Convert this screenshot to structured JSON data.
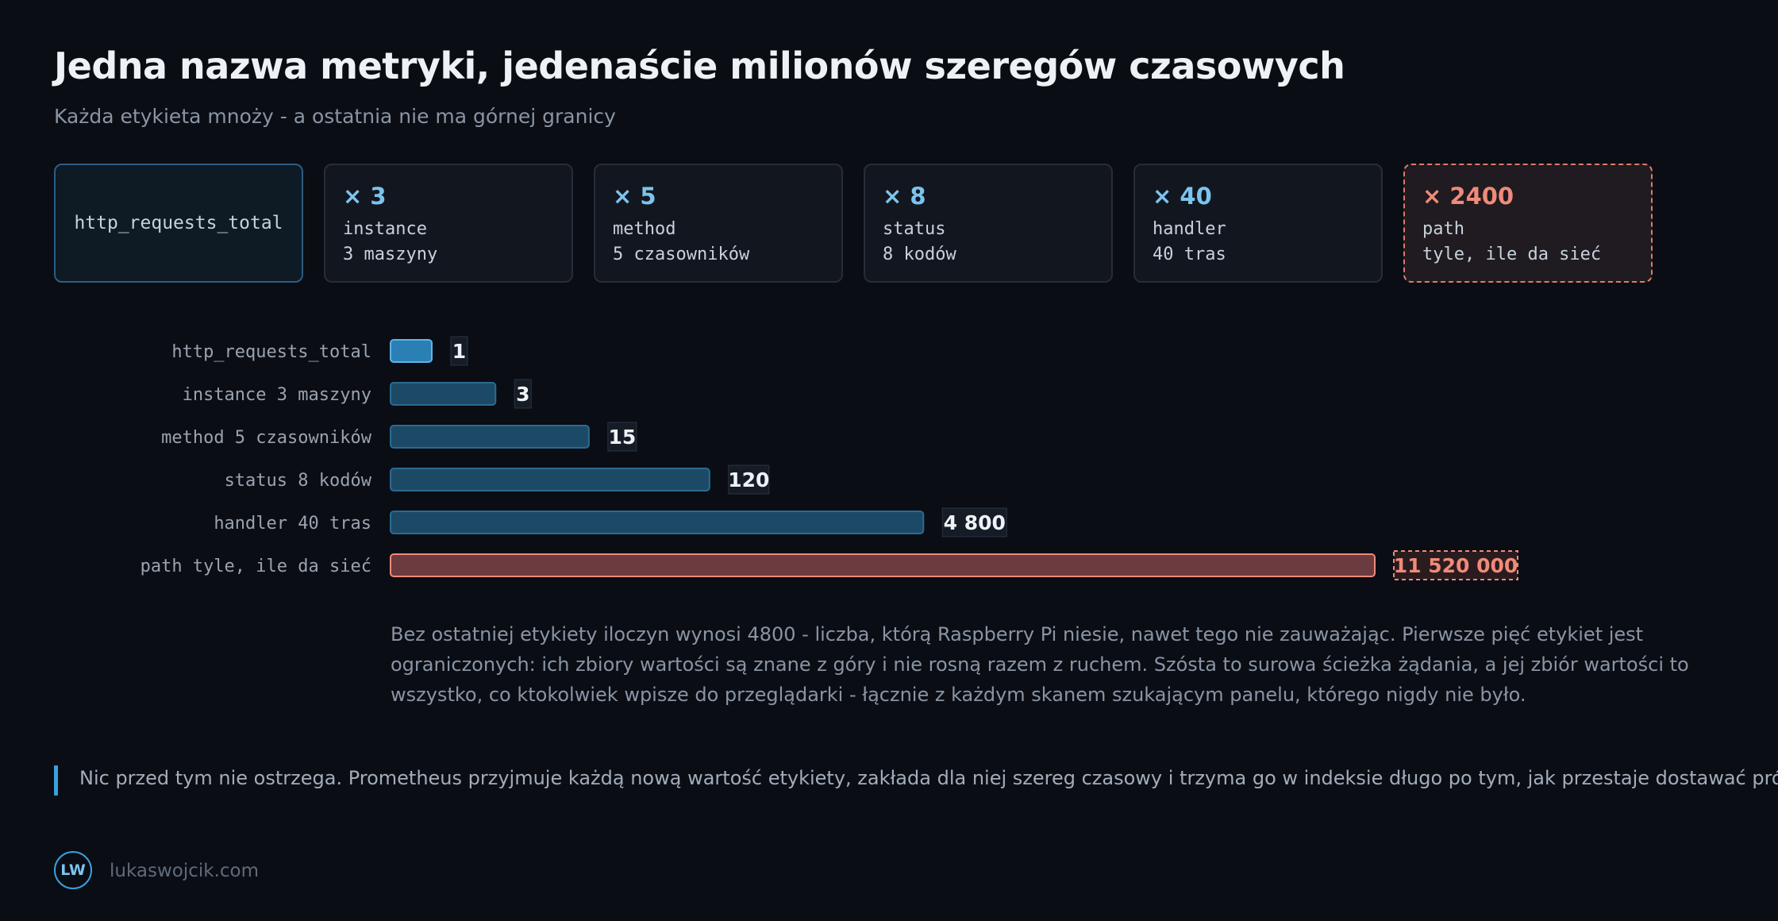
{
  "title": "Jedna nazwa metryki, jedenaście milionów szeregów czasowych",
  "subtitle": "Każda etykieta mnoży - a ostatnia nie ma górnej granicy",
  "cards": {
    "base": "http_requests_total",
    "labels": [
      {
        "mult": "× 3",
        "name": "instance",
        "desc": "3 maszyny"
      },
      {
        "mult": "× 5",
        "name": "method",
        "desc": "5 czasowników"
      },
      {
        "mult": "× 8",
        "name": "status",
        "desc": "8 kodów"
      },
      {
        "mult": "× 40",
        "name": "handler",
        "desc": "40 tras"
      },
      {
        "mult": "× 2400",
        "name": "path",
        "desc": "tyle, ile da sieć"
      }
    ]
  },
  "chart_data": {
    "type": "bar",
    "orientation": "horizontal",
    "scale": "log",
    "categories": [
      "http_requests_total",
      "instance 3 maszyny",
      "method 5 czasowników",
      "status 8 kodów",
      "handler 40 tras",
      "path tyle, ile da sieć"
    ],
    "values": [
      1,
      3,
      15,
      120,
      4800,
      11520000
    ],
    "value_labels": [
      "1",
      "3",
      "15",
      "120",
      "4 800",
      "11 520 000"
    ],
    "colors": {
      "first": "#2a7fb5",
      "normal": "#1c4a66",
      "danger": "#6b3b40",
      "danger_stroke": "#f08a7a"
    }
  },
  "description": "Bez ostatniej etykiety iloczyn wynosi 4800 - liczba, którą Raspberry Pi niesie, nawet tego nie zauważając. Pierwsze pięć etykiet jest ograniczonych: ich zbiory wartości są znane z góry i nie rosną razem z ruchem. Szósta to surowa ścieżka żądania, a jej zbiór wartości to wszystko, co ktokolwiek wpisze do przeglądarki - łącznie z każdym skanem szukającym panelu, którego nigdy nie było.",
  "callout": "Nic przed tym nie ostrzega. Prometheus przyjmuje każdą nową wartość etykiety, zakłada dla niej szereg czasowy i trzyma go w indeksie długo po tym, jak przestaje dostawać próbki.",
  "footer": {
    "logo": "LW",
    "site": "lukaswojcik.com"
  }
}
